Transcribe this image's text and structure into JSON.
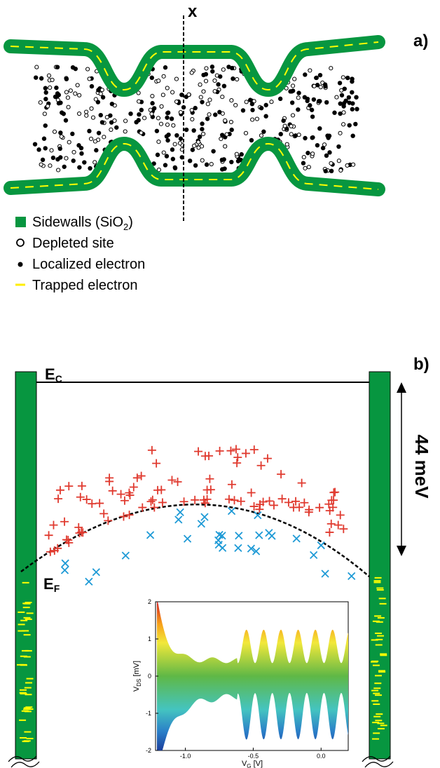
{
  "label_x": "x",
  "panel_a": "a)",
  "legend": [
    {
      "text": "Sidewalls (SiO",
      "sub": "2",
      "after": ")"
    },
    {
      "text": "Depleted site"
    },
    {
      "text": "Localized electron"
    },
    {
      "text": "Trapped electron"
    }
  ],
  "panel_b": "b)",
  "ec": {
    "main": "E",
    "sub": "C"
  },
  "ef": {
    "main": "E",
    "sub": "F"
  },
  "energy": "44 meV",
  "inset": {
    "yticks": [
      "2",
      "1",
      "0",
      "-1",
      "-2"
    ],
    "xticks": [
      "-1.0",
      "-0.5",
      "0.0"
    ],
    "ylabel": {
      "main": "V",
      "sub": "DS",
      "unit": " [mV]"
    },
    "xlabel": {
      "main": "V",
      "sub": "G",
      "unit": " [V]"
    }
  }
}
